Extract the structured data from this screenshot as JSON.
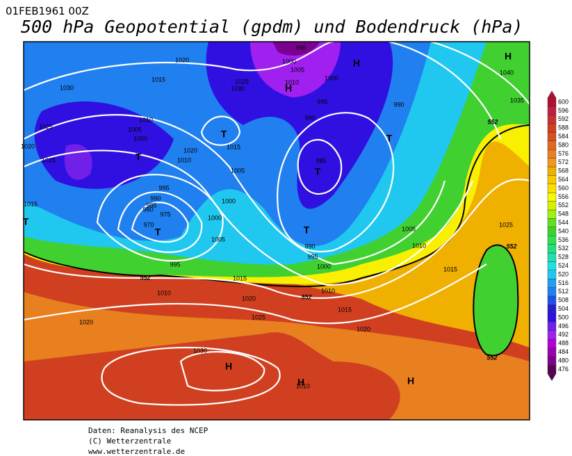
{
  "header": {
    "date": "01FEB1961 00Z",
    "title": "500 hPa Geopotential (gpdm) und Bodendruck (hPa)"
  },
  "colorbar": {
    "ticks": [
      476,
      480,
      484,
      488,
      492,
      496,
      500,
      504,
      508,
      512,
      516,
      520,
      524,
      528,
      532,
      536,
      540,
      544,
      548,
      552,
      556,
      560,
      564,
      568,
      572,
      576,
      580,
      584,
      588,
      592,
      596,
      600
    ],
    "colors": [
      "#5a0050",
      "#7a0090",
      "#9a00b0",
      "#b400d8",
      "#a020f0",
      "#7020e8",
      "#3010e0",
      "#2020d0",
      "#2050e8",
      "#2080f0",
      "#20a0f0",
      "#20c8f0",
      "#20e0e0",
      "#20e0b0",
      "#20e080",
      "#30e050",
      "#40d030",
      "#60e020",
      "#a0f010",
      "#d8f000",
      "#f8f800",
      "#f8e000",
      "#f8c800",
      "#f0b000",
      "#f09820",
      "#e88020",
      "#e06820",
      "#d85020",
      "#d04020",
      "#c83030",
      "#c02040",
      "#b01030"
    ]
  },
  "map": {
    "pressure_labels": [
      995,
      1000,
      1005,
      1020,
      1030,
      1015,
      1025,
      1030,
      1010,
      1000,
      995,
      990,
      990,
      1035,
      1040,
      1025,
      1010,
      1005,
      1000,
      1015,
      1020,
      1010,
      1005,
      985,
      1015,
      1020,
      995,
      1000,
      990,
      985,
      980,
      975,
      970,
      1000,
      1005,
      995,
      990,
      995,
      1000,
      1005,
      1010,
      1025,
      1015,
      1015,
      1010,
      1010,
      1020,
      1015,
      1025,
      1020,
      1020,
      1015,
      1030,
      1010
    ],
    "height_labels": [
      552,
      552,
      552,
      552,
      552
    ],
    "centers": [
      "H",
      "H",
      "H",
      "H",
      "H",
      "H",
      "T",
      "T",
      "T",
      "T",
      "T",
      "T",
      "T"
    ]
  },
  "footer": {
    "source": "Daten: Reanalysis des NCEP",
    "copyright": "(C) Wetterzentrale",
    "url": "www.wetterzentrale.de"
  }
}
